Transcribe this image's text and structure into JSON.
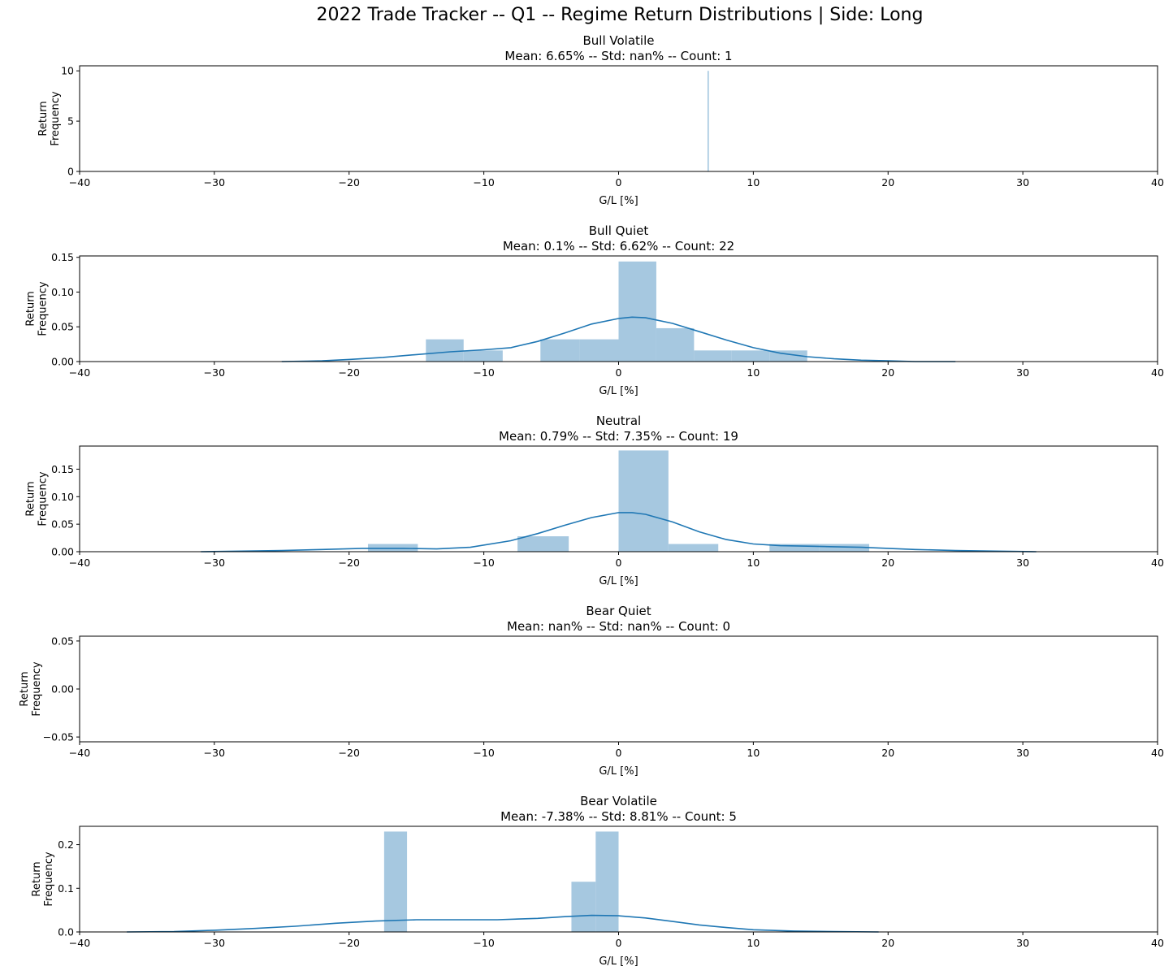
{
  "figure": {
    "title": "2022 Trade Tracker -- Q1 -- Regime Return Distributions | Side: Long"
  },
  "colors": {
    "bar_fill": "#a6c8e0",
    "kde_line": "#1f77b4",
    "axis": "#000000"
  },
  "chart_data": [
    {
      "type": "bar",
      "title": "Bull Volatile",
      "subtitle": "Mean: 6.65% -- Std: nan% -- Count: 1",
      "xlabel": "G/L [%]",
      "ylabel": [
        "Return",
        "Frequency"
      ],
      "xlim": [
        -40,
        40
      ],
      "ylim": [
        0,
        10.5
      ],
      "xticks": [
        -40,
        -30,
        -20,
        -10,
        0,
        10,
        20,
        30,
        40
      ],
      "yticks": [
        0,
        5,
        10
      ],
      "ytick_labels": [
        "0",
        "5",
        "10"
      ],
      "bins": [
        {
          "x0": 6.6,
          "x1": 6.7,
          "y": 10
        }
      ],
      "kde": []
    },
    {
      "type": "bar",
      "title": "Bull Quiet",
      "subtitle": "Mean: 0.1% -- Std: 6.62% -- Count: 22",
      "xlabel": "G/L [%]",
      "ylabel": [
        "Return",
        "Frequency"
      ],
      "xlim": [
        -40,
        40
      ],
      "ylim": [
        0,
        0.152
      ],
      "xticks": [
        -40,
        -30,
        -20,
        -10,
        0,
        10,
        20,
        30,
        40
      ],
      "yticks": [
        0,
        0.05,
        0.1,
        0.15
      ],
      "ytick_labels": [
        "0.00",
        "0.05",
        "0.10",
        "0.15"
      ],
      "bins": [
        {
          "x0": -14.3,
          "x1": -11.5,
          "y": 0.032
        },
        {
          "x0": -11.5,
          "x1": -8.6,
          "y": 0.016
        },
        {
          "x0": -5.8,
          "x1": -2.9,
          "y": 0.032
        },
        {
          "x0": -2.9,
          "x1": 0.0,
          "y": 0.032
        },
        {
          "x0": 0.0,
          "x1": 2.8,
          "y": 0.144
        },
        {
          "x0": 2.8,
          "x1": 5.6,
          "y": 0.048
        },
        {
          "x0": 5.6,
          "x1": 8.4,
          "y": 0.016
        },
        {
          "x0": 8.4,
          "x1": 11.2,
          "y": 0.016
        },
        {
          "x0": 11.2,
          "x1": 14.0,
          "y": 0.016
        }
      ],
      "kde": [
        [
          -25,
          0.0
        ],
        [
          -22,
          0.001
        ],
        [
          -20,
          0.003
        ],
        [
          -17.5,
          0.006
        ],
        [
          -15,
          0.01
        ],
        [
          -12.5,
          0.014
        ],
        [
          -10,
          0.017
        ],
        [
          -8,
          0.02
        ],
        [
          -6,
          0.029
        ],
        [
          -4,
          0.041
        ],
        [
          -2,
          0.054
        ],
        [
          0,
          0.062
        ],
        [
          1,
          0.064
        ],
        [
          2,
          0.063
        ],
        [
          4,
          0.055
        ],
        [
          6,
          0.043
        ],
        [
          8,
          0.031
        ],
        [
          10,
          0.02
        ],
        [
          12,
          0.012
        ],
        [
          14,
          0.007
        ],
        [
          16,
          0.004
        ],
        [
          18,
          0.002
        ],
        [
          20,
          0.001
        ],
        [
          22,
          0.0
        ],
        [
          25,
          0.0
        ]
      ]
    },
    {
      "type": "bar",
      "title": "Neutral",
      "subtitle": "Mean: 0.79% -- Std: 7.35% -- Count: 19",
      "xlabel": "G/L [%]",
      "ylabel": [
        "Return",
        "Frequency"
      ],
      "xlim": [
        -40,
        40
      ],
      "ylim": [
        0,
        0.192
      ],
      "xticks": [
        -40,
        -30,
        -20,
        -10,
        0,
        10,
        20,
        30,
        40
      ],
      "yticks": [
        0,
        0.05,
        0.1,
        0.15
      ],
      "ytick_labels": [
        "0.00",
        "0.05",
        "0.10",
        "0.15"
      ],
      "bins": [
        {
          "x0": -18.6,
          "x1": -14.9,
          "y": 0.014
        },
        {
          "x0": -7.5,
          "x1": -3.7,
          "y": 0.028
        },
        {
          "x0": 0.0,
          "x1": 3.7,
          "y": 0.184
        },
        {
          "x0": 3.7,
          "x1": 7.4,
          "y": 0.014
        },
        {
          "x0": 11.2,
          "x1": 14.9,
          "y": 0.014
        },
        {
          "x0": 14.9,
          "x1": 18.6,
          "y": 0.014
        }
      ],
      "kde": [
        [
          -31,
          0.0
        ],
        [
          -28,
          0.001
        ],
        [
          -25,
          0.002
        ],
        [
          -22,
          0.004
        ],
        [
          -19,
          0.006
        ],
        [
          -16,
          0.006
        ],
        [
          -13.5,
          0.005
        ],
        [
          -11,
          0.008
        ],
        [
          -8,
          0.02
        ],
        [
          -6,
          0.033
        ],
        [
          -4,
          0.048
        ],
        [
          -2,
          0.062
        ],
        [
          0,
          0.071
        ],
        [
          1,
          0.071
        ],
        [
          2,
          0.068
        ],
        [
          4,
          0.054
        ],
        [
          6,
          0.036
        ],
        [
          8,
          0.022
        ],
        [
          10,
          0.014
        ],
        [
          12,
          0.011
        ],
        [
          14,
          0.01
        ],
        [
          16,
          0.009
        ],
        [
          18,
          0.008
        ],
        [
          20,
          0.006
        ],
        [
          22,
          0.004
        ],
        [
          25,
          0.002
        ],
        [
          28,
          0.001
        ],
        [
          31,
          0.0
        ]
      ]
    },
    {
      "type": "bar",
      "title": "Bear Quiet",
      "subtitle": "Mean: nan% -- Std: nan% -- Count: 0",
      "xlabel": "G/L [%]",
      "ylabel": [
        "Return",
        "Frequency"
      ],
      "xlim": [
        -40,
        40
      ],
      "ylim": [
        -0.055,
        0.055
      ],
      "xticks": [
        -40,
        -30,
        -20,
        -10,
        0,
        10,
        20,
        30,
        40
      ],
      "yticks": [
        -0.05,
        0,
        0.05
      ],
      "ytick_labels": [
        "−0.05",
        "0.00",
        "0.05"
      ],
      "bins": [],
      "kde": []
    },
    {
      "type": "bar",
      "title": "Bear Volatile",
      "subtitle": "Mean: -7.38% -- Std: 8.81% -- Count: 5",
      "xlabel": "G/L [%]",
      "ylabel": [
        "Return",
        "Frequency"
      ],
      "xlim": [
        -40,
        40
      ],
      "ylim": [
        0,
        0.242
      ],
      "xticks": [
        -40,
        -30,
        -20,
        -10,
        0,
        10,
        20,
        30,
        40
      ],
      "yticks": [
        0,
        0.1,
        0.2
      ],
      "ytick_labels": [
        "0.0",
        "0.1",
        "0.2"
      ],
      "bins": [
        {
          "x0": -17.4,
          "x1": -15.7,
          "y": 0.23
        },
        {
          "x0": -3.5,
          "x1": -1.7,
          "y": 0.115
        },
        {
          "x0": -1.7,
          "x1": 0.0,
          "y": 0.23
        }
      ],
      "kde": [
        [
          -36.5,
          0.0
        ],
        [
          -33,
          0.001
        ],
        [
          -30,
          0.004
        ],
        [
          -27,
          0.008
        ],
        [
          -24,
          0.013
        ],
        [
          -21,
          0.02
        ],
        [
          -18,
          0.025
        ],
        [
          -15,
          0.028
        ],
        [
          -12,
          0.028
        ],
        [
          -9,
          0.028
        ],
        [
          -6,
          0.031
        ],
        [
          -4,
          0.035
        ],
        [
          -2,
          0.038
        ],
        [
          0,
          0.037
        ],
        [
          2,
          0.032
        ],
        [
          4,
          0.024
        ],
        [
          6,
          0.016
        ],
        [
          8,
          0.01
        ],
        [
          10,
          0.005
        ],
        [
          13,
          0.002
        ],
        [
          16,
          0.001
        ],
        [
          19.3,
          0.0
        ]
      ]
    }
  ]
}
